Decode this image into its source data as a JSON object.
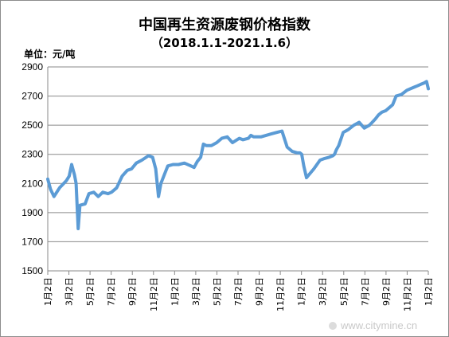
{
  "chart_data": {
    "type": "line",
    "title": "中国再生资源废钢价格指数",
    "subtitle": "（2018.1.1-2021.1.6）",
    "ylabel": "单位：元/吨",
    "ylim": [
      1500,
      2900
    ],
    "yticks": [
      1500,
      1700,
      1900,
      2100,
      2300,
      2500,
      2700,
      2900
    ],
    "grid": true,
    "legend": "none",
    "line_color": "#5b9bd5",
    "xtick_labels": [
      "1月2日",
      "3月2日",
      "5月2日",
      "7月2日",
      "9月2日",
      "11月2日",
      "1月2日",
      "3月2日",
      "5月2日",
      "7月2日",
      "9月2日",
      "11月2日",
      "1月2日",
      "3月2日",
      "5月2日",
      "7月2日",
      "9月2日",
      "11月2日",
      "1月2日"
    ],
    "series": [
      {
        "x": [
          "2018-01-02",
          "2018-01-10",
          "2018-01-20",
          "2018-02-05",
          "2018-02-25",
          "2018-03-05",
          "2018-03-12",
          "2018-03-20",
          "2018-03-25",
          "2018-03-31",
          "2018-04-05",
          "2018-04-20",
          "2018-05-01",
          "2018-05-15",
          "2018-05-28",
          "2018-06-10",
          "2018-06-25",
          "2018-07-05",
          "2018-07-20",
          "2018-08-05",
          "2018-08-20",
          "2018-09-01",
          "2018-09-15",
          "2018-10-01",
          "2018-10-20",
          "2018-11-01",
          "2018-11-10",
          "2018-11-18",
          "2018-11-25",
          "2018-12-05",
          "2018-12-15",
          "2018-12-30",
          "2019-01-15",
          "2019-02-01",
          "2019-02-20",
          "2019-03-01",
          "2019-03-10",
          "2019-03-20",
          "2019-03-28",
          "2019-04-05",
          "2019-04-20",
          "2019-05-05",
          "2019-05-20",
          "2019-06-05",
          "2019-06-20",
          "2019-07-10",
          "2019-07-20",
          "2019-08-05",
          "2019-08-12",
          "2019-08-20",
          "2019-09-10",
          "2019-09-25",
          "2019-10-10",
          "2019-10-25",
          "2019-11-10",
          "2019-11-25",
          "2019-12-10",
          "2019-12-25",
          "2020-01-01",
          "2020-01-06",
          "2020-01-12",
          "2020-01-20",
          "2020-02-10",
          "2020-02-28",
          "2020-03-10",
          "2020-03-25",
          "2020-04-05",
          "2020-04-10",
          "2020-04-15",
          "2020-04-22",
          "2020-05-05",
          "2020-05-20",
          "2020-06-05",
          "2020-06-20",
          "2020-07-05",
          "2020-07-20",
          "2020-07-28",
          "2020-08-05",
          "2020-08-15",
          "2020-08-25",
          "2020-09-05",
          "2020-09-15",
          "2020-09-25",
          "2020-10-05",
          "2020-10-20",
          "2020-11-05",
          "2020-11-15",
          "2020-11-25",
          "2020-12-05",
          "2020-12-15",
          "2020-12-25",
          "2021-01-01",
          "2021-01-06"
        ],
        "y": [
          2130,
          2060,
          2010,
          2070,
          2120,
          2150,
          2230,
          2160,
          2100,
          1790,
          1950,
          1960,
          2030,
          2040,
          2010,
          2040,
          2030,
          2040,
          2070,
          2150,
          2190,
          2200,
          2240,
          2260,
          2290,
          2280,
          2200,
          2010,
          2100,
          2160,
          2220,
          2230,
          2230,
          2240,
          2220,
          2210,
          2250,
          2280,
          2370,
          2360,
          2360,
          2380,
          2410,
          2420,
          2380,
          2410,
          2400,
          2410,
          2430,
          2420,
          2420,
          2430,
          2440,
          2450,
          2460,
          2350,
          2320,
          2310,
          2310,
          2300,
          2220,
          2140,
          2200,
          2260,
          2270,
          2280,
          2290,
          2300,
          2330,
          2360,
          2450,
          2470,
          2500,
          2520,
          2480,
          2500,
          2520,
          2540,
          2570,
          2590,
          2600,
          2620,
          2640,
          2700,
          2710,
          2740,
          2750,
          2760,
          2770,
          2780,
          2790,
          2800,
          2750
        ]
      }
    ]
  },
  "watermark": "www.citymine.cn"
}
